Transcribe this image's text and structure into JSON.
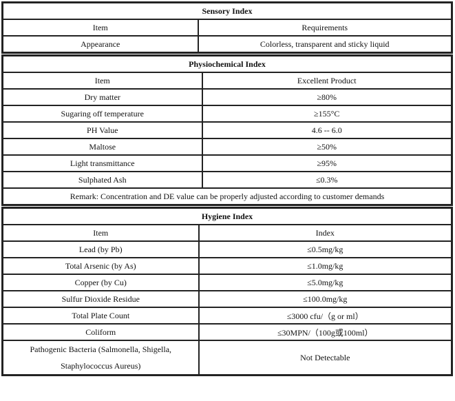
{
  "sensory": {
    "title": "Sensory Index",
    "headers": [
      "Item",
      "Requirements"
    ],
    "rows": [
      [
        "Appearance",
        "Colorless, transparent and sticky liquid"
      ]
    ]
  },
  "physiochemical": {
    "title": "Physiochemical Index",
    "headers": [
      "Item",
      "Excellent Product"
    ],
    "rows": [
      [
        "Dry matter",
        "≥80%"
      ],
      [
        "Sugaring off temperature",
        "≥155°C"
      ],
      [
        "PH Value",
        "4.6 -- 6.0"
      ],
      [
        "Maltose",
        "≥50%"
      ],
      [
        "Light transmittance",
        "≥95%"
      ],
      [
        "Sulphated Ash",
        "≤0.3%"
      ]
    ],
    "remark": "Remark: Concentration and DE value can be properly adjusted according to customer demands"
  },
  "hygiene": {
    "title": "Hygiene Index",
    "headers": [
      "Item",
      "Index"
    ],
    "rows": [
      [
        "Lead (by Pb)",
        "≤0.5mg/kg"
      ],
      [
        "Total Arsenic (by As)",
        "≤1.0mg/kg"
      ],
      [
        "Copper (by Cu)",
        "≤5.0mg/kg"
      ],
      [
        "Sulfur Dioxide Residue",
        "≤100.0mg/kg"
      ],
      [
        "Total Plate Count",
        "≤3000 cfu/（g or ml）"
      ],
      [
        "Coliform",
        "≤30MPN/（100g或100ml）"
      ],
      [
        "Pathogenic Bacteria (Salmonella, Shigella, Staphylococcus Aureus)",
        "Not Detectable"
      ]
    ]
  }
}
